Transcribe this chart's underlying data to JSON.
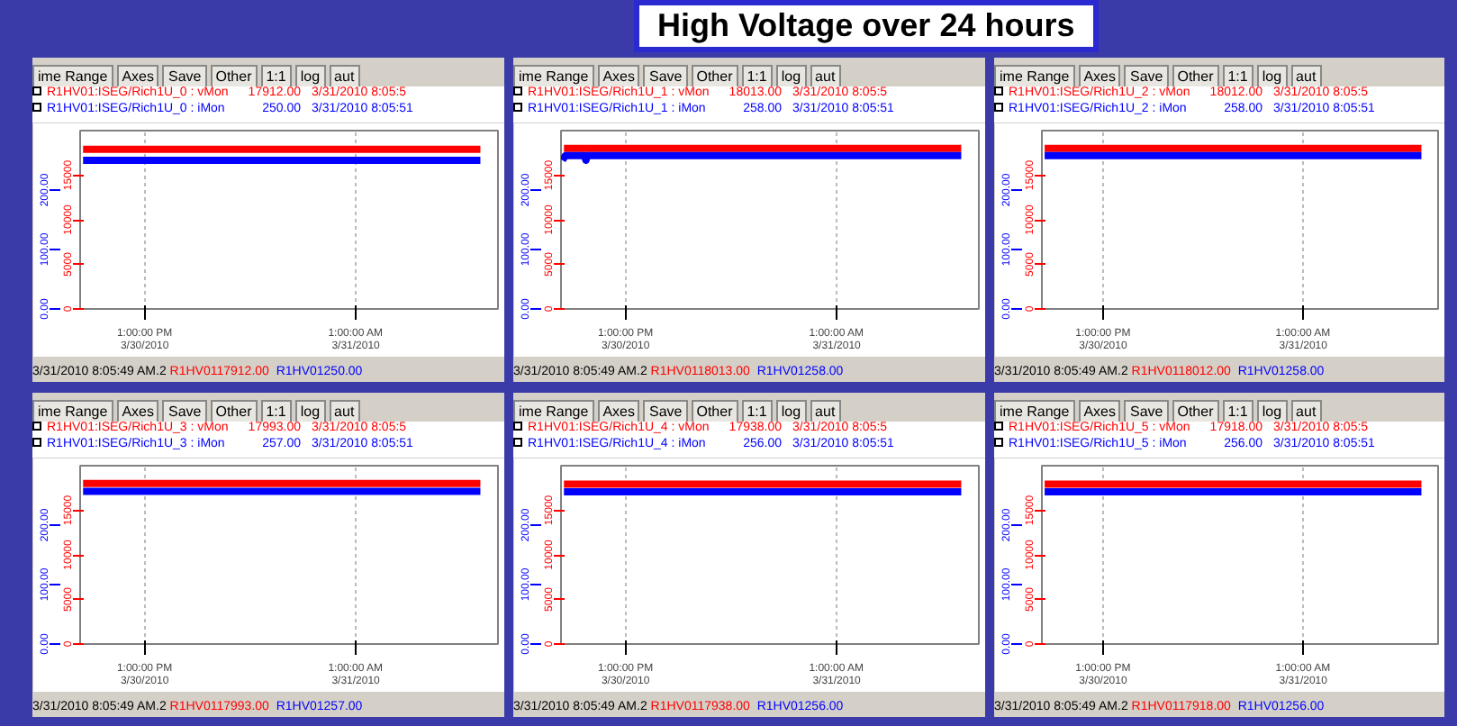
{
  "chart_data": [
    {
      "type": "line",
      "legend": "top",
      "grid": "x",
      "marker": "none",
      "line_style": "solid",
      "xlim": [
        "2010-03-30T09:20",
        "2010-03-31T09:05"
      ],
      "xticks": [
        {
          "value": "2010-03-30T13:00",
          "label": "1:00:00 PM\n3/30/2010"
        },
        {
          "value": "2010-03-31T01:00",
          "label": "1:00:00 AM\n3/31/2010"
        }
      ],
      "ylim": [
        0,
        20000
      ],
      "yticks": [
        0,
        5000,
        10000,
        15000
      ],
      "y2lim": [
        0,
        300
      ],
      "y2ticks": [
        {
          "value": 0,
          "label": "0.00"
        },
        {
          "value": 100,
          "label": "100.00"
        },
        {
          "value": 200,
          "label": "200.00"
        }
      ],
      "series": [
        {
          "name": "R1HV01:ISEG/Rich1U_0 : vMon",
          "color": "#ff0000",
          "x": [
            "2010-03-30T09:30",
            "2010-03-31T08:05"
          ],
          "values": [
            17912,
            17912
          ]
        },
        {
          "name": "R1HV01:ISEG/Rich1U_0 : iMon",
          "color": "#0000ff",
          "axis": "y2",
          "x": [
            "2010-03-30T09:30",
            "2010-03-31T08:05"
          ],
          "values": [
            250,
            250
          ]
        }
      ],
      "annotations": [
        "17912.00",
        "3/31/2010 8:05:5",
        "250.00",
        "3/31/2010 8:05:51",
        "3/31/2010 8:05:49 AM.2",
        "R1HV0117912.00",
        "R1HV01250.00",
        "ime Range",
        "Axes",
        "Save",
        "Other",
        "1:1",
        "log",
        "aut"
      ]
    },
    {
      "type": "line",
      "legend": "top",
      "grid": "x",
      "marker": "none",
      "line_style": "solid",
      "xlim": [
        "2010-03-30T09:20",
        "2010-03-31T09:05"
      ],
      "xticks": [
        {
          "value": "2010-03-30T13:00",
          "label": "1:00:00 PM\n3/30/2010"
        },
        {
          "value": "2010-03-31T01:00",
          "label": "1:00:00 AM\n3/31/2010"
        }
      ],
      "ylim": [
        0,
        20000
      ],
      "yticks": [
        0,
        5000,
        10000,
        15000
      ],
      "y2lim": [
        0,
        300
      ],
      "y2ticks": [
        {
          "value": 0,
          "label": "0.00"
        },
        {
          "value": 100,
          "label": "100.00"
        },
        {
          "value": 200,
          "label": "200.00"
        }
      ],
      "series": [
        {
          "name": "R1HV01:ISEG/Rich1U_1 : vMon",
          "color": "#ff0000",
          "x": [
            "2010-03-30T09:30",
            "2010-03-31T08:05"
          ],
          "values": [
            18013,
            18013
          ]
        },
        {
          "name": "R1HV01:ISEG/Rich1U_1 : iMon",
          "color": "#0000ff",
          "axis": "y2",
          "x": [
            "2010-03-30T09:25",
            "2010-03-30T09:35",
            "2010-03-30T10:40",
            "2010-03-30T10:45",
            "2010-03-30T10:50",
            "2010-03-31T08:05"
          ],
          "values": [
            250,
            258,
            258,
            250,
            258,
            258
          ]
        }
      ],
      "annotations": [
        "18013.00",
        "3/31/2010 8:05:5",
        "258.00",
        "3/31/2010 8:05:51",
        "3/31/2010 8:05:49 AM.2",
        "R1HV0118013.00",
        "R1HV01258.00",
        "ime Range",
        "Axes",
        "Save",
        "Other",
        "1:1",
        "log",
        "aut"
      ]
    },
    {
      "type": "line",
      "legend": "top",
      "grid": "x",
      "marker": "none",
      "line_style": "solid",
      "xlim": [
        "2010-03-30T09:20",
        "2010-03-31T09:05"
      ],
      "xticks": [
        {
          "value": "2010-03-30T13:00",
          "label": "1:00:00 PM\n3/30/2010"
        },
        {
          "value": "2010-03-31T01:00",
          "label": "1:00:00 AM\n3/31/2010"
        }
      ],
      "ylim": [
        0,
        20000
      ],
      "yticks": [
        0,
        5000,
        10000,
        15000
      ],
      "y2lim": [
        0,
        300
      ],
      "y2ticks": [
        {
          "value": 0,
          "label": "0.00"
        },
        {
          "value": 100,
          "label": "100.00"
        },
        {
          "value": 200,
          "label": "200.00"
        }
      ],
      "series": [
        {
          "name": "R1HV01:ISEG/Rich1U_2 : vMon",
          "color": "#ff0000",
          "x": [
            "2010-03-30T09:30",
            "2010-03-31T08:05"
          ],
          "values": [
            18012,
            18012
          ]
        },
        {
          "name": "R1HV01:ISEG/Rich1U_2 : iMon",
          "color": "#0000ff",
          "axis": "y2",
          "x": [
            "2010-03-30T09:30",
            "2010-03-31T08:05"
          ],
          "values": [
            258,
            258
          ]
        }
      ],
      "annotations": [
        "18012.00",
        "3/31/2010 8:05:5",
        "258.00",
        "3/31/2010 8:05:51",
        "3/31/2010 8:05:49 AM.2",
        "R1HV0118012.00",
        "R1HV01258.00",
        "ime Range",
        "Axes",
        "Save",
        "Other",
        "1:1",
        "log",
        "aut"
      ]
    },
    {
      "type": "line",
      "legend": "top",
      "grid": "x",
      "marker": "none",
      "line_style": "solid",
      "xlim": [
        "2010-03-30T09:20",
        "2010-03-31T09:05"
      ],
      "xticks": [
        {
          "value": "2010-03-30T13:00",
          "label": "1:00:00 PM\n3/30/2010"
        },
        {
          "value": "2010-03-31T01:00",
          "label": "1:00:00 AM\n3/31/2010"
        }
      ],
      "ylim": [
        0,
        20000
      ],
      "yticks": [
        0,
        5000,
        10000,
        15000
      ],
      "y2lim": [
        0,
        300
      ],
      "y2ticks": [
        {
          "value": 0,
          "label": "0.00"
        },
        {
          "value": 100,
          "label": "100.00"
        },
        {
          "value": 200,
          "label": "200.00"
        }
      ],
      "series": [
        {
          "name": "R1HV01:ISEG/Rich1U_3 : vMon",
          "color": "#ff0000",
          "x": [
            "2010-03-30T09:30",
            "2010-03-31T08:05"
          ],
          "values": [
            17993,
            17993
          ]
        },
        {
          "name": "R1HV01:ISEG/Rich1U_3 : iMon",
          "color": "#0000ff",
          "axis": "y2",
          "x": [
            "2010-03-30T09:30",
            "2010-03-31T08:05"
          ],
          "values": [
            257,
            257
          ]
        }
      ],
      "annotations": [
        "17993.00",
        "3/31/2010 8:05:5",
        "257.00",
        "3/31/2010 8:05:51",
        "3/31/2010 8:05:49 AM.2",
        "R1HV0117993.00",
        "R1HV01257.00",
        "ime Range",
        "Axes",
        "Save",
        "Other",
        "1:1",
        "log",
        "aut"
      ]
    },
    {
      "type": "line",
      "legend": "top",
      "grid": "x",
      "marker": "none",
      "line_style": "solid",
      "xlim": [
        "2010-03-30T09:20",
        "2010-03-31T09:05"
      ],
      "xticks": [
        {
          "value": "2010-03-30T13:00",
          "label": "1:00:00 PM\n3/30/2010"
        },
        {
          "value": "2010-03-31T01:00",
          "label": "1:00:00 AM\n3/31/2010"
        }
      ],
      "ylim": [
        0,
        20000
      ],
      "yticks": [
        0,
        5000,
        10000,
        15000
      ],
      "y2lim": [
        0,
        300
      ],
      "y2ticks": [
        {
          "value": 0,
          "label": "0.00"
        },
        {
          "value": 100,
          "label": "100.00"
        },
        {
          "value": 200,
          "label": "200.00"
        }
      ],
      "series": [
        {
          "name": "R1HV01:ISEG/Rich1U_4 : vMon",
          "color": "#ff0000",
          "x": [
            "2010-03-30T09:30",
            "2010-03-31T08:05"
          ],
          "values": [
            17938,
            17938
          ]
        },
        {
          "name": "R1HV01:ISEG/Rich1U_4 : iMon",
          "color": "#0000ff",
          "axis": "y2",
          "x": [
            "2010-03-30T09:30",
            "2010-03-31T08:05"
          ],
          "values": [
            256,
            256
          ]
        }
      ],
      "annotations": [
        "17938.00",
        "3/31/2010 8:05:5",
        "256.00",
        "3/31/2010 8:05:51",
        "3/31/2010 8:05:49 AM.2",
        "R1HV0117938.00",
        "R1HV01256.00",
        "ime Range",
        "Axes",
        "Save",
        "Other",
        "1:1",
        "log",
        "aut"
      ]
    },
    {
      "type": "line",
      "legend": "top",
      "grid": "x",
      "marker": "none",
      "line_style": "solid",
      "xlim": [
        "2010-03-30T09:20",
        "2010-03-31T09:05"
      ],
      "xticks": [
        {
          "value": "2010-03-30T13:00",
          "label": "1:00:00 PM\n3/30/2010"
        },
        {
          "value": "2010-03-31T01:00",
          "label": "1:00:00 AM\n3/31/2010"
        }
      ],
      "ylim": [
        0,
        20000
      ],
      "yticks": [
        0,
        5000,
        10000,
        15000
      ],
      "y2lim": [
        0,
        300
      ],
      "y2ticks": [
        {
          "value": 0,
          "label": "0.00"
        },
        {
          "value": 100,
          "label": "100.00"
        },
        {
          "value": 200,
          "label": "200.00"
        }
      ],
      "series": [
        {
          "name": "R1HV01:ISEG/Rich1U_5 : vMon",
          "color": "#ff0000",
          "x": [
            "2010-03-30T09:30",
            "2010-03-31T08:05"
          ],
          "values": [
            17918,
            17918
          ]
        },
        {
          "name": "R1HV01:ISEG/Rich1U_5 : iMon",
          "color": "#0000ff",
          "axis": "y2",
          "x": [
            "2010-03-30T09:30",
            "2010-03-31T08:05"
          ],
          "values": [
            256,
            256
          ]
        }
      ],
      "annotations": [
        "17918.00",
        "3/31/2010 8:05:5",
        "256.00",
        "3/31/2010 8:05:51",
        "3/31/2010 8:05:49 AM.2",
        "R1HV0117918.00",
        "R1HV01256.00",
        "ime Range",
        "Axes",
        "Save",
        "Other",
        "1:1",
        "log",
        "aut"
      ]
    },
    {
      "type": "other",
      "title": "High Voltage over 24 hours"
    }
  ]
}
